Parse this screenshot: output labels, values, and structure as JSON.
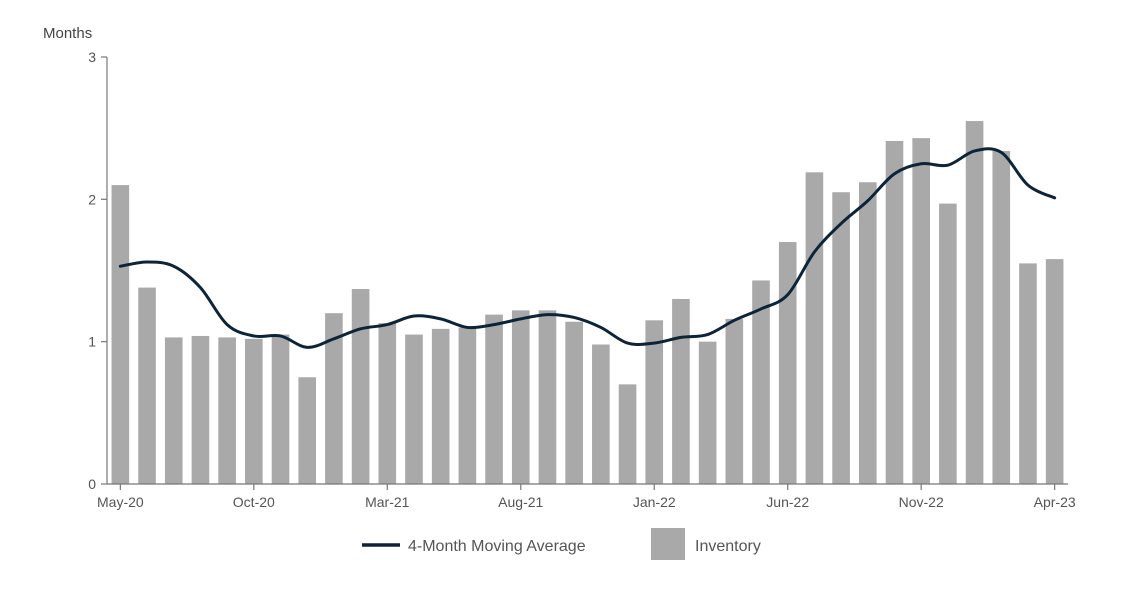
{
  "chart_data": {
    "type": "bar",
    "ylabel": "Months",
    "ylim": [
      0,
      3
    ],
    "yticks": [
      "0",
      "1",
      "2",
      "3"
    ],
    "categories": [
      "May-20",
      "Jun-20",
      "Jul-20",
      "Aug-20",
      "Sep-20",
      "Oct-20",
      "Nov-20",
      "Dec-20",
      "Jan-21",
      "Feb-21",
      "Mar-21",
      "Apr-21",
      "May-21",
      "Jun-21",
      "Jul-21",
      "Aug-21",
      "Sep-21",
      "Oct-21",
      "Nov-21",
      "Dec-21",
      "Jan-22",
      "Feb-22",
      "Mar-22",
      "Apr-22",
      "May-22",
      "Jun-22",
      "Jul-22",
      "Aug-22",
      "Sep-22",
      "Oct-22",
      "Nov-22",
      "Dec-22",
      "Jan-23",
      "Feb-23",
      "Mar-23",
      "Apr-23"
    ],
    "xtick_labels": [
      "May-20",
      "Oct-20",
      "Mar-21",
      "Aug-21",
      "Jan-22",
      "Jun-22",
      "Nov-22",
      "Apr-23"
    ],
    "series": [
      {
        "name": "Inventory",
        "type": "bar",
        "color": "#a9a9a9",
        "values": [
          2.1,
          1.38,
          1.03,
          1.04,
          1.03,
          1.02,
          1.05,
          0.75,
          1.2,
          1.37,
          1.13,
          1.05,
          1.09,
          1.1,
          1.19,
          1.22,
          1.22,
          1.14,
          0.98,
          0.7,
          1.15,
          1.3,
          1.0,
          1.16,
          1.43,
          1.7,
          2.19,
          2.05,
          2.12,
          2.41,
          2.43,
          1.97,
          2.55,
          2.34,
          1.55,
          1.58
        ]
      },
      {
        "name": "4-Month Moving Average",
        "type": "line",
        "color": "#0d2438",
        "values": [
          1.53,
          1.56,
          1.53,
          1.38,
          1.12,
          1.04,
          1.04,
          0.96,
          1.02,
          1.09,
          1.12,
          1.18,
          1.16,
          1.1,
          1.12,
          1.16,
          1.19,
          1.17,
          1.1,
          0.99,
          0.99,
          1.03,
          1.05,
          1.15,
          1.23,
          1.33,
          1.63,
          1.83,
          1.99,
          2.18,
          2.25,
          2.24,
          2.34,
          2.33,
          2.1,
          2.01
        ]
      }
    ],
    "grid": false,
    "legend_position": "bottom-center"
  }
}
